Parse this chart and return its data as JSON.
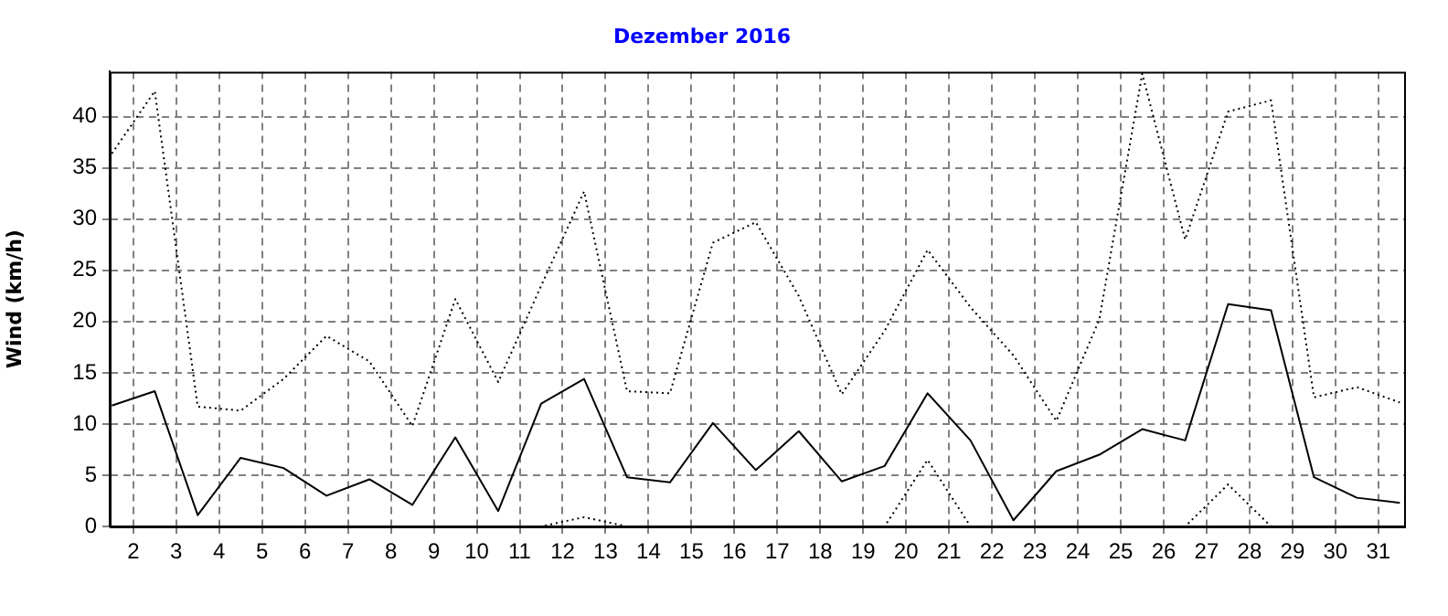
{
  "chart_data": {
    "type": "line",
    "title": "Dezember 2016",
    "ylabel": "Wind (km/h)",
    "x": [
      1.5,
      2.5,
      3.5,
      4.5,
      5.5,
      6.5,
      7.5,
      8.5,
      9.5,
      10.5,
      11.5,
      12.5,
      13.5,
      14.5,
      15.5,
      16.5,
      17.5,
      18.5,
      19.5,
      20.5,
      21.5,
      22.5,
      23.5,
      24.5,
      25.5,
      26.5,
      27.5,
      28.5,
      29.5,
      30.5,
      31.5
    ],
    "xlim": [
      1.45,
      31.6
    ],
    "xticks": [
      2,
      3,
      4,
      5,
      6,
      7,
      8,
      9,
      10,
      11,
      12,
      13,
      14,
      15,
      16,
      17,
      18,
      19,
      20,
      21,
      22,
      23,
      24,
      25,
      26,
      27,
      28,
      29,
      30,
      31
    ],
    "ylim": [
      0,
      44.4
    ],
    "yticks": [
      0,
      5,
      10,
      15,
      20,
      25,
      30,
      35,
      40
    ],
    "grid": true,
    "marker": "none",
    "legend": false,
    "series": [
      {
        "color": "#000000",
        "line_style": "dotted",
        "values": [
          36.4,
          42.5,
          11.7,
          11.3,
          14.4,
          18.6,
          16.1,
          9.8,
          22.2,
          14.1,
          23.5,
          32.7,
          13.2,
          13.0,
          27.7,
          29.7,
          22.5,
          12.9,
          19.1,
          27.0,
          21.4,
          16.7,
          10.3,
          20.2,
          44.2,
          28.0,
          40.5,
          41.6,
          12.6,
          13.6,
          12.1
        ]
      },
      {
        "color": "#000000",
        "line_style": "solid",
        "values": [
          11.8,
          13.2,
          1.1,
          6.7,
          5.7,
          3.0,
          4.6,
          2.1,
          8.7,
          1.5,
          12.0,
          14.4,
          4.8,
          4.3,
          10.1,
          5.5,
          9.3,
          4.4,
          5.9,
          13.0,
          8.4,
          0.6,
          5.4,
          7.0,
          9.5,
          8.4,
          21.7,
          21.1,
          4.8,
          2.8,
          2.3
        ]
      },
      {
        "color": "#000000",
        "line_style": "dotted",
        "values": [
          0,
          0,
          0,
          0,
          0,
          0,
          0,
          0,
          0,
          0,
          0,
          0.9,
          0,
          0,
          0,
          0,
          0,
          0,
          0,
          6.5,
          0,
          0,
          0,
          0,
          0,
          0,
          4.1,
          0,
          0,
          0,
          0
        ]
      }
    ]
  }
}
